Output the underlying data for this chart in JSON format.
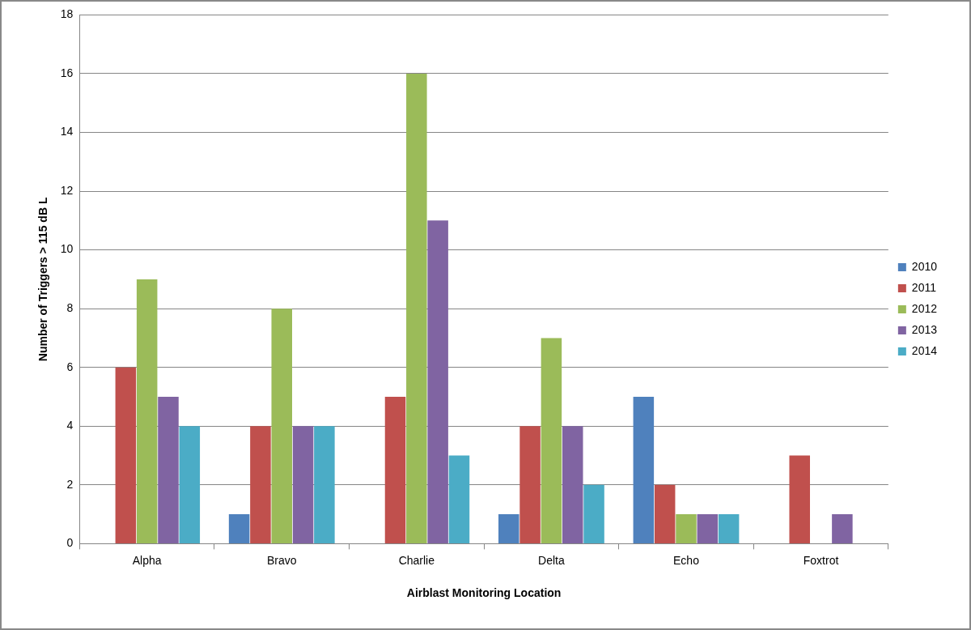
{
  "chart_data": {
    "type": "bar",
    "xlabel": "Airblast Monitoring Location",
    "ylabel": "Number of Triggers > 115 dB L",
    "categories": [
      "Alpha",
      "Bravo",
      "Charlie",
      "Delta",
      "Echo",
      "Foxtrot"
    ],
    "series": [
      {
        "name": "2010",
        "color": "#4f81bd",
        "values": [
          0,
          1,
          0,
          1,
          5,
          0
        ]
      },
      {
        "name": "2011",
        "color": "#c0504d",
        "values": [
          6,
          4,
          5,
          4,
          2,
          3
        ]
      },
      {
        "name": "2012",
        "color": "#9bbb59",
        "values": [
          9,
          8,
          16,
          7,
          1,
          0
        ]
      },
      {
        "name": "2013",
        "color": "#8064a2",
        "values": [
          5,
          4,
          11,
          4,
          1,
          1
        ]
      },
      {
        "name": "2014",
        "color": "#4bacc6",
        "values": [
          4,
          4,
          3,
          2,
          1,
          0
        ]
      }
    ],
    "ylim": [
      0,
      18
    ],
    "yticks": [
      0,
      2,
      4,
      6,
      8,
      10,
      12,
      14,
      16,
      18
    ],
    "grid": "y",
    "legend": "right"
  }
}
